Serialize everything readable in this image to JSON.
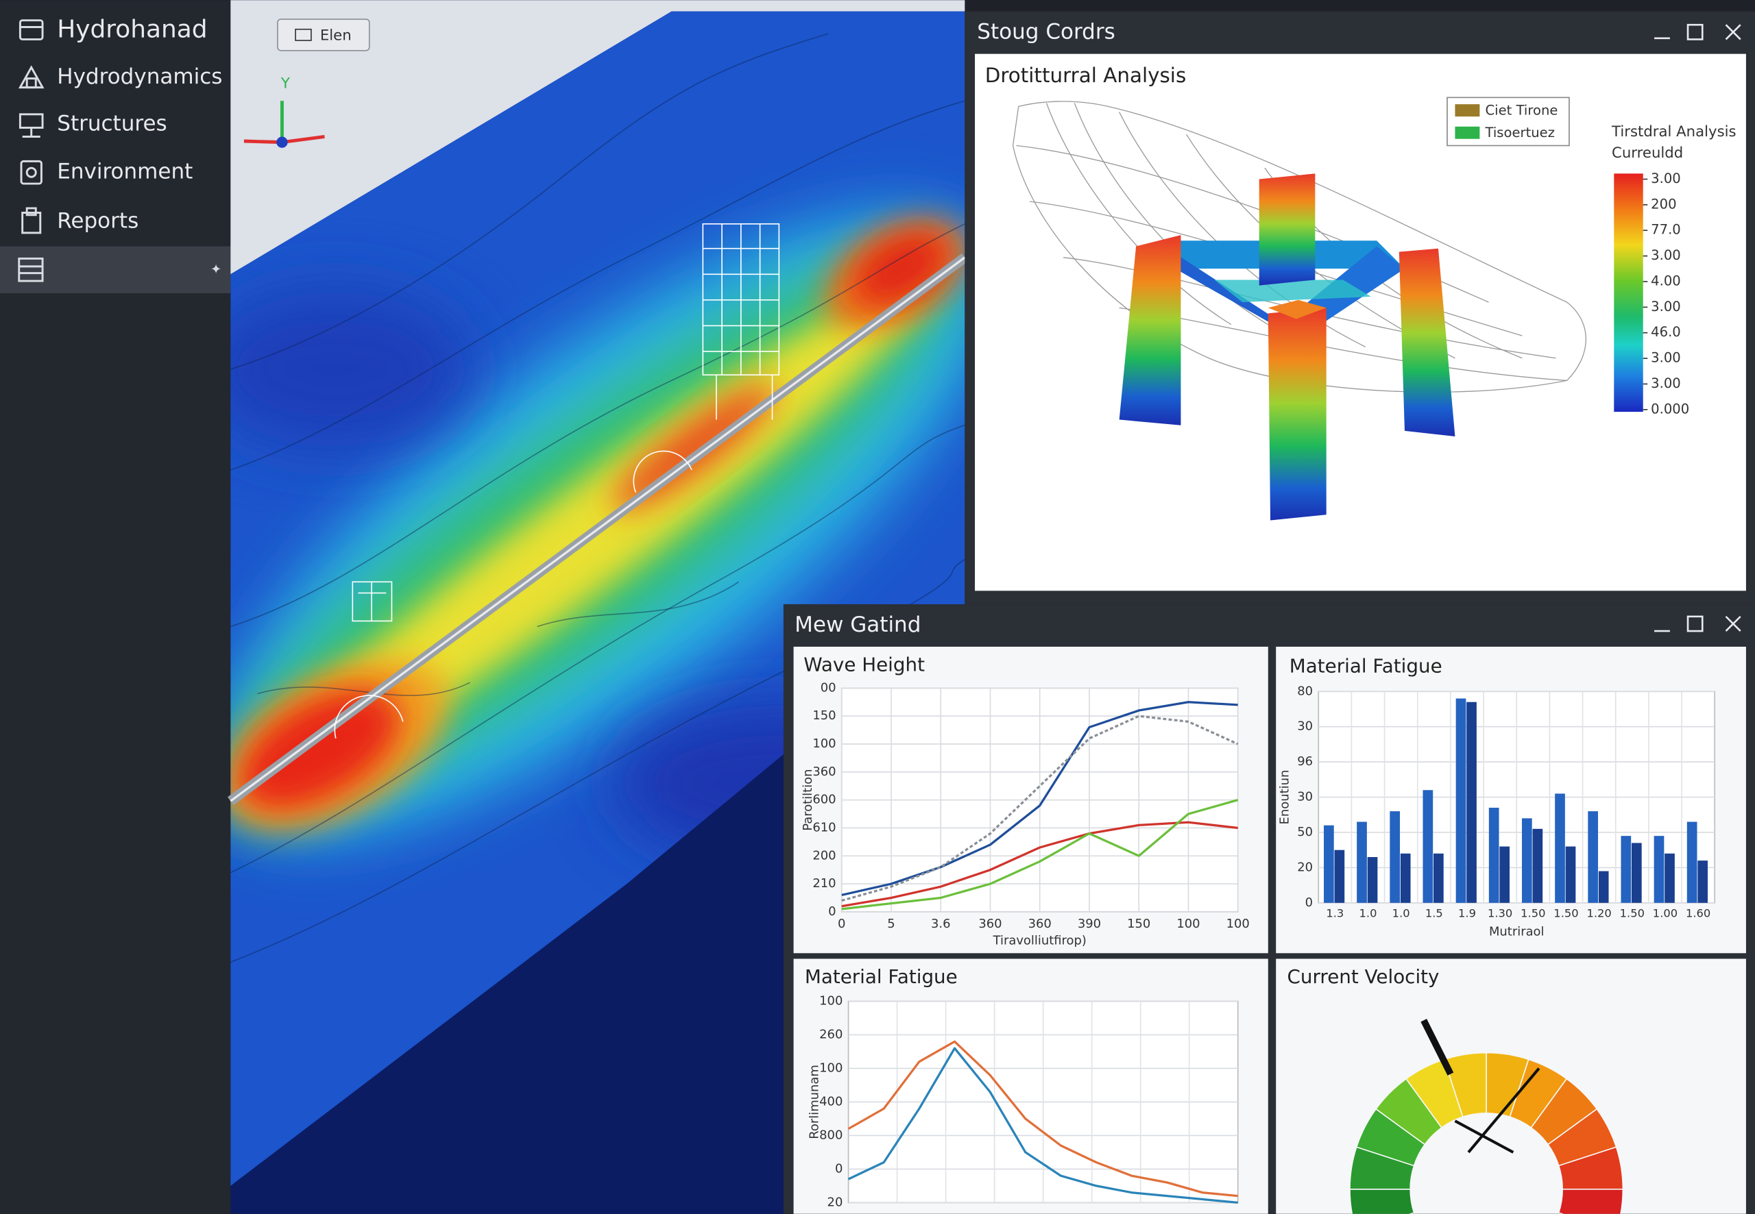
{
  "sidebar": {
    "items": [
      "Hydrohanad",
      "Hydrodynamics",
      "Structures",
      "Environment",
      "Reports"
    ]
  },
  "viewport": {
    "button": "Elen",
    "axis_label": "Y"
  },
  "structural_window": {
    "title": "Stoug Cordrs",
    "chart_title": "Drotitturral Analysis",
    "legend": [
      {
        "name": "Ciet Tirone",
        "color": "#9a7b2a"
      },
      {
        "name": "Tisoertuez",
        "color": "#2db34a"
      }
    ],
    "colorbar_title": [
      "Tirstdral Analysis",
      "Curreuldd"
    ],
    "colorbar_labels": [
      "3.00",
      "200",
      "77.0",
      "3.00",
      "4.00",
      "3.00",
      "46.0",
      "3.00",
      "3.00",
      "0.000"
    ]
  },
  "monitor_window": {
    "title": "Mew Gatind",
    "charts": [
      {
        "type": "line",
        "title": "Wave Height",
        "y_label": "Parotiltion",
        "x_label": "Tiravolliutfirop)",
        "xlim": [
          0,
          8
        ],
        "ylim": [
          0,
          8
        ],
        "xticks": [
          0,
          {
            "value": 1,
            "label": "5"
          },
          {
            "value": 2,
            "label": "3.6"
          },
          {
            "value": 3,
            "label": "360"
          },
          {
            "value": 4,
            "label": "360"
          },
          {
            "value": 5,
            "label": "390"
          },
          {
            "value": 6,
            "label": "150"
          },
          {
            "value": 7,
            "label": "100"
          },
          {
            "value": 8,
            "label": "100"
          }
        ],
        "yticks": [
          0,
          {
            "value": 1,
            "label": "210"
          },
          {
            "value": 2,
            "label": "200"
          },
          {
            "value": 3,
            "label": "610"
          },
          {
            "value": 4,
            "label": "600"
          },
          {
            "value": 5,
            "label": "360"
          },
          {
            "value": 6,
            "label": "100"
          },
          {
            "value": 7,
            "label": "150"
          },
          {
            "value": 8,
            "label": "00"
          }
        ],
        "x": [
          0,
          1,
          2,
          3,
          4,
          5,
          6,
          7,
          8
        ],
        "series": [
          {
            "color": "#1f4e9a",
            "values": [
              0.6,
              1.0,
              1.6,
              2.4,
              3.8,
              6.6,
              7.2,
              7.5,
              7.4
            ]
          },
          {
            "color": "#8a8f96",
            "values": [
              0.4,
              0.9,
              1.6,
              2.8,
              4.5,
              6.2,
              7.0,
              6.8,
              6.0
            ]
          },
          {
            "color": "#d0342c",
            "values": [
              0.2,
              0.5,
              0.9,
              1.5,
              2.3,
              2.8,
              3.1,
              3.2,
              3.0
            ]
          },
          {
            "color": "#6cbf3c",
            "values": [
              0.1,
              0.3,
              0.5,
              1.0,
              1.8,
              2.8,
              2.0,
              3.5,
              4.0
            ]
          }
        ],
        "grid": true
      },
      {
        "type": "bar",
        "title": "Material Fatigue",
        "y_label": "Enoutiun",
        "x_label": "Mutriraol",
        "ylim": [
          0,
          6
        ],
        "yticks": [
          0,
          {
            "value": 1,
            "label": "20"
          },
          {
            "value": 2,
            "label": "50"
          },
          {
            "value": 3,
            "label": "30"
          },
          {
            "value": 4,
            "label": "96"
          },
          {
            "value": 5,
            "label": "30"
          },
          {
            "value": 6,
            "label": "80"
          }
        ],
        "categories": [
          "1.3",
          "1.0",
          "1.0",
          "1.5",
          "1.9",
          "1.30",
          "1.50",
          "1.50",
          "1.20",
          "1.50",
          "1.00",
          "1.60"
        ],
        "series": [
          {
            "color": "#2563c0",
            "values": [
              2.2,
              2.3,
              2.6,
              3.2,
              5.8,
              2.7,
              2.4,
              3.1,
              2.6,
              1.9,
              1.9,
              2.3
            ]
          },
          {
            "color": "#1a3f8f",
            "values": [
              1.5,
              1.3,
              1.4,
              1.4,
              5.7,
              1.6,
              2.1,
              1.6,
              0.9,
              1.7,
              1.4,
              1.2
            ]
          }
        ],
        "grid": true
      },
      {
        "type": "line",
        "title": "Material Fatigue",
        "y_label": "Rorlimunam",
        "xlim": [
          0,
          11
        ],
        "ylim": [
          0,
          6
        ],
        "yticks": [
          {
            "value": 0,
            "label": "20"
          },
          {
            "value": 1,
            "label": "0"
          },
          {
            "value": 2,
            "label": "800"
          },
          {
            "value": 3,
            "label": "400"
          },
          {
            "value": 4,
            "label": "100"
          },
          {
            "value": 5,
            "label": "260"
          },
          {
            "value": 6,
            "label": "100"
          }
        ],
        "x": [
          0,
          1,
          2,
          3,
          4,
          5,
          6,
          7,
          8,
          9,
          10,
          11
        ],
        "series": [
          {
            "color": "#e0703a",
            "values": [
              2.2,
              2.8,
              4.2,
              4.8,
              3.8,
              2.5,
              1.7,
              1.2,
              0.8,
              0.6,
              0.3,
              0.2
            ]
          },
          {
            "color": "#2a84b8",
            "values": [
              0.7,
              1.2,
              2.8,
              4.6,
              3.3,
              1.5,
              0.8,
              0.5,
              0.3,
              0.2,
              0.1,
              0.0
            ]
          }
        ],
        "grid": true
      },
      {
        "type": "gauge",
        "title": "Current Velocity"
      }
    ]
  }
}
